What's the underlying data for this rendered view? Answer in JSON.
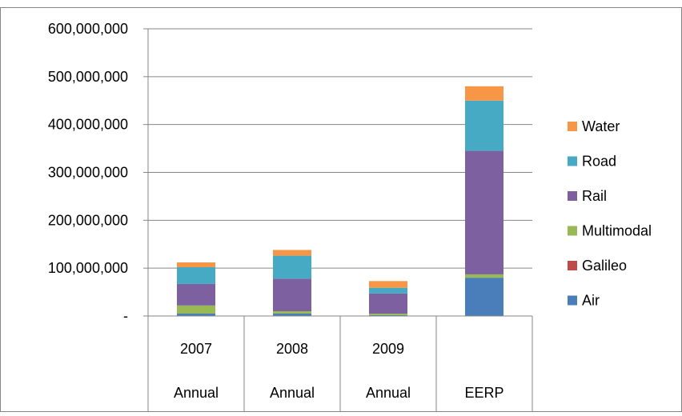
{
  "chart_data": {
    "type": "bar",
    "stacked": true,
    "categories": [
      {
        "top": "2007",
        "bottom": "Annual"
      },
      {
        "top": "2008",
        "bottom": "Annual"
      },
      {
        "top": "2009",
        "bottom": "Annual"
      },
      {
        "top": "",
        "bottom": "EERP"
      }
    ],
    "series": [
      {
        "name": "Air",
        "color": "#4A7EBB",
        "values": [
          5000000,
          5000000,
          2000000,
          80000000
        ]
      },
      {
        "name": "Galileo",
        "color": "#BE4B48",
        "values": [
          0,
          0,
          0,
          0
        ]
      },
      {
        "name": "Multimodal",
        "color": "#98B954",
        "values": [
          17000000,
          5000000,
          3000000,
          7000000
        ]
      },
      {
        "name": "Rail",
        "color": "#7D60A0",
        "values": [
          45000000,
          68000000,
          42000000,
          258000000
        ]
      },
      {
        "name": "Road",
        "color": "#46AAC4",
        "values": [
          35000000,
          48000000,
          12000000,
          105000000
        ]
      },
      {
        "name": "Water",
        "color": "#F79646",
        "values": [
          10000000,
          12000000,
          14000000,
          30000000
        ]
      }
    ],
    "ylim": [
      0,
      600000000
    ],
    "yticks": [
      "-",
      "100,000,000",
      "200,000,000",
      "300,000,000",
      "400,000,000",
      "500,000,000",
      "600,000,000"
    ],
    "grid": true,
    "legend_position": "right",
    "legend_order": [
      "Water",
      "Road",
      "Rail",
      "Multimodal",
      "Galileo",
      "Air"
    ],
    "title": "",
    "xlabel": "",
    "ylabel": ""
  }
}
